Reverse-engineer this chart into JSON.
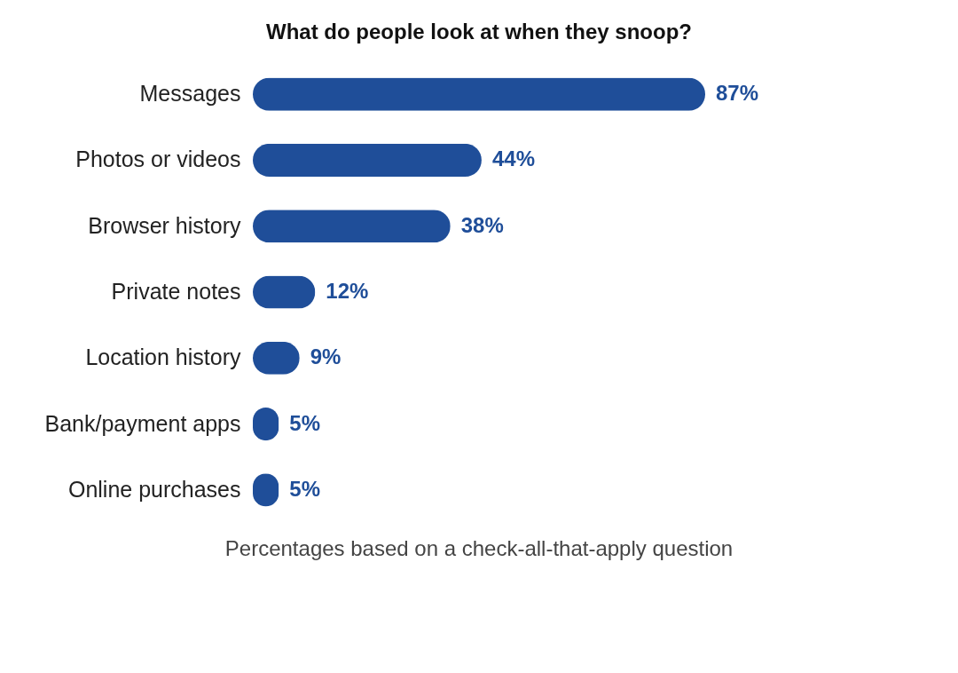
{
  "chart_data": {
    "type": "bar",
    "orientation": "horizontal",
    "title": "What do people look at when they snoop?",
    "categories": [
      "Messages",
      "Photos or videos",
      "Browser history",
      "Private notes",
      "Location history",
      "Bank/payment apps",
      "Online purchases"
    ],
    "values": [
      87,
      44,
      38,
      12,
      9,
      5,
      5
    ],
    "value_labels": [
      "87%",
      "44%",
      "38%",
      "12%",
      "9%",
      "5%",
      "5%"
    ],
    "color": "#1f4e99",
    "tick_labels": "y",
    "annotations": [
      "Percentages based on a check-all-that-apply question"
    ]
  }
}
